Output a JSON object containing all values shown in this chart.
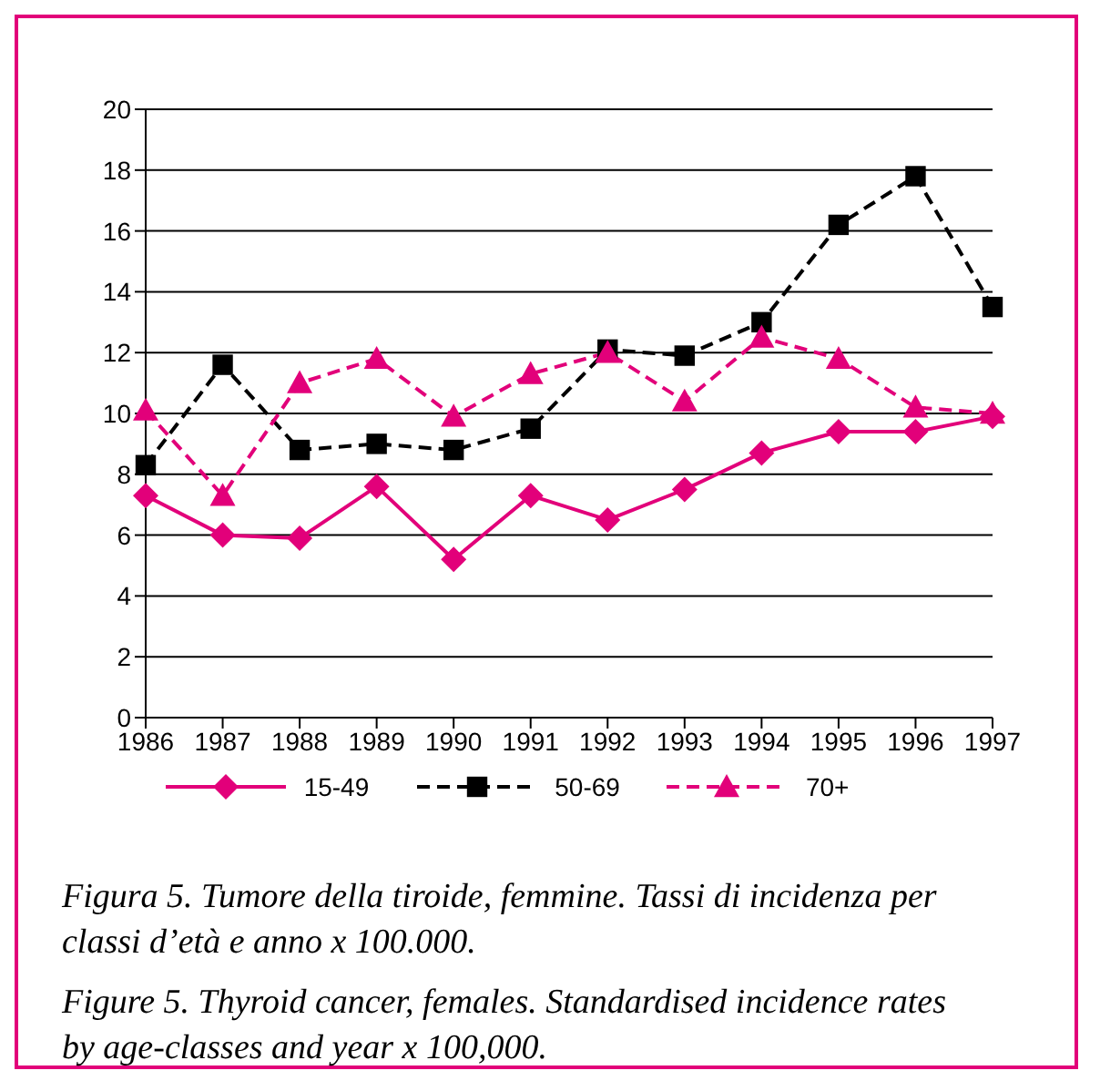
{
  "chart_data": {
    "type": "line",
    "categories": [
      "1986",
      "1987",
      "1988",
      "1989",
      "1990",
      "1991",
      "1992",
      "1993",
      "1994",
      "1995",
      "1996",
      "1997"
    ],
    "series": [
      {
        "name": "15-49",
        "color": "#e2007a",
        "marker": "diamond",
        "line_style": "solid",
        "values": [
          7.3,
          6.0,
          5.9,
          7.6,
          5.2,
          7.3,
          6.5,
          7.5,
          8.7,
          9.4,
          9.4,
          9.9
        ]
      },
      {
        "name": "50-69",
        "color": "#000000",
        "marker": "square",
        "line_style": "dashed",
        "values": [
          8.3,
          11.6,
          8.8,
          9.0,
          8.8,
          9.5,
          12.1,
          11.9,
          13.0,
          16.2,
          17.8,
          13.5
        ]
      },
      {
        "name": "70+",
        "color": "#e2007a",
        "marker": "triangle",
        "line_style": "dashed",
        "values": [
          10.1,
          7.3,
          11.0,
          11.8,
          9.9,
          11.3,
          12.0,
          10.4,
          12.5,
          11.8,
          10.2,
          10.0
        ]
      }
    ],
    "ylim": [
      0,
      20
    ],
    "yticks": [
      0,
      2,
      4,
      6,
      8,
      10,
      12,
      14,
      16,
      18,
      20
    ],
    "grid": "y",
    "legend": "bottom",
    "annotations": [
      "Figura 5. Tumore della tiroide, femmine. Tassi di incidenza per classi d’età e anno x 100.000.",
      "Figure 5. Thyroid cancer, females. Standardised incidence rates by age-classes and year x 100,000."
    ]
  }
}
